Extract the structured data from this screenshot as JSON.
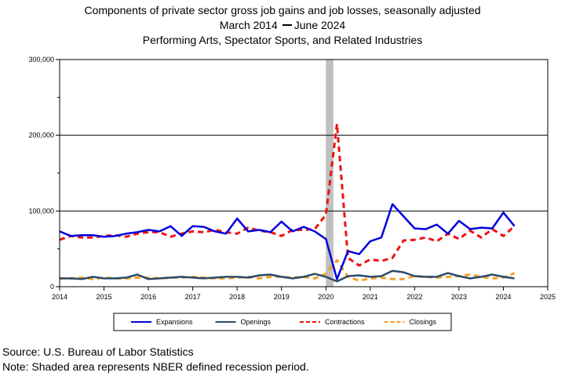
{
  "chart_data": {
    "type": "line",
    "title": "Components of private sector gross job gains and job losses, seasonally adjusted",
    "subtitle_start": "March 2014",
    "subtitle_end": "June 2024",
    "subtitle2": "Performing Arts, Spectator Sports, and Related Industries",
    "xlabel": "",
    "ylabel": "",
    "xlim": [
      2014,
      2025
    ],
    "ylim": [
      0,
      300000
    ],
    "x_ticks": [
      "2014",
      "2015",
      "2016",
      "2017",
      "2018",
      "2019",
      "2020",
      "2021",
      "2022",
      "2023",
      "2024",
      "2025"
    ],
    "y_ticks": [
      "0",
      "100,000",
      "200,000",
      "300,000"
    ],
    "grid": "horizontal at 100,000 intervals",
    "legend_position": "bottom",
    "recession": {
      "start": 2020.0,
      "end": 2020.17,
      "color": "#c0c0c0"
    },
    "x": [
      2014.0,
      2014.25,
      2014.5,
      2014.75,
      2015.0,
      2015.25,
      2015.5,
      2015.75,
      2016.0,
      2016.25,
      2016.5,
      2016.75,
      2017.0,
      2017.25,
      2017.5,
      2017.75,
      2018.0,
      2018.25,
      2018.5,
      2018.75,
      2019.0,
      2019.25,
      2019.5,
      2019.75,
      2020.0,
      2020.25,
      2020.5,
      2020.75,
      2021.0,
      2021.25,
      2021.5,
      2021.75,
      2022.0,
      2022.25,
      2022.5,
      2022.75,
      2023.0,
      2023.25,
      2023.5,
      2023.75,
      2024.0,
      2024.25
    ],
    "series": [
      {
        "name": "Expansions",
        "color": "#0000dd",
        "dash": "solid",
        "values": [
          73000,
          67000,
          68000,
          68000,
          66000,
          67000,
          70000,
          72000,
          75000,
          73000,
          80000,
          67000,
          80000,
          79000,
          73000,
          70000,
          90000,
          73000,
          75000,
          72000,
          86000,
          73000,
          79000,
          73000,
          63000,
          10000,
          47000,
          43000,
          60000,
          65000,
          109000,
          93000,
          77000,
          76000,
          82000,
          70000,
          87000,
          76000,
          78000,
          77000,
          98000,
          80000
        ]
      },
      {
        "name": "Openings",
        "color": "#2a4a6a",
        "dash": "solid",
        "values": [
          11000,
          11000,
          10000,
          13000,
          11000,
          11000,
          12000,
          16000,
          10000,
          11000,
          12000,
          13000,
          12000,
          11000,
          12000,
          13000,
          13000,
          12000,
          15000,
          16000,
          13000,
          11000,
          13000,
          17000,
          13000,
          7000,
          14000,
          15000,
          13000,
          14000,
          21000,
          19000,
          14000,
          13000,
          13000,
          18000,
          14000,
          11000,
          13000,
          16000,
          13000,
          11000
        ]
      },
      {
        "name": "Contractions",
        "color": "#ee1111",
        "dash": "dashed",
        "values": [
          62000,
          67000,
          65000,
          65000,
          67000,
          68000,
          66000,
          70000,
          72000,
          72000,
          66000,
          70000,
          73000,
          72000,
          75000,
          72000,
          70000,
          78000,
          74000,
          72000,
          67000,
          75000,
          75000,
          76000,
          95000,
          215000,
          38000,
          28000,
          36000,
          34000,
          38000,
          61000,
          62000,
          65000,
          60000,
          70000,
          63000,
          74000,
          65000,
          76000,
          67000,
          80000
        ]
      },
      {
        "name": "Closings",
        "color": "#f4a020",
        "dash": "dashed",
        "values": [
          11000,
          11000,
          12000,
          10000,
          12000,
          11000,
          11000,
          12000,
          12000,
          11000,
          12000,
          12000,
          13000,
          12000,
          11000,
          11000,
          12000,
          13000,
          11000,
          13000,
          13000,
          12000,
          13000,
          11000,
          17000,
          35000,
          13000,
          8000,
          11000,
          12000,
          10000,
          10000,
          14000,
          13000,
          12000,
          13000,
          14000,
          16000,
          13000,
          11000,
          12000,
          18000
        ]
      }
    ]
  },
  "footnotes": {
    "source": "Source: U.S. Bureau of Labor Statistics",
    "note": "Note: Shaded area represents NBER defined recession period."
  }
}
